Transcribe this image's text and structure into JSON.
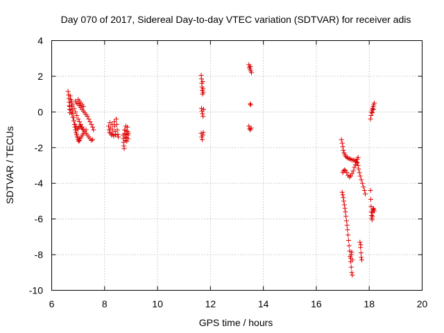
{
  "chart_data": {
    "type": "scatter",
    "title": "Day 070 of 2017, Sidereal Day-to-day VTEC variation (SDTVAR) for receiver adis",
    "xlabel": "GPS time / hours",
    "ylabel": "SDTVAR / TECUs",
    "xlim": [
      6,
      20
    ],
    "ylim": [
      -10,
      4
    ],
    "xticks": [
      "6",
      "8",
      "10",
      "12",
      "14",
      "16",
      "18",
      "20"
    ],
    "yticks": [
      "4",
      "2",
      "0",
      "-2",
      "-4",
      "-6",
      "-8",
      "-10"
    ],
    "grid": true,
    "marker": "plus",
    "color": "#e00000",
    "series": [
      {
        "name": "SDTVAR",
        "points": [
          [
            6.62,
            1.15
          ],
          [
            6.64,
            0.95
          ],
          [
            6.65,
            0.75
          ],
          [
            6.66,
            0.55
          ],
          [
            6.67,
            0.35
          ],
          [
            6.68,
            0.15
          ],
          [
            6.69,
            -0.05
          ],
          [
            6.7,
            0.9
          ],
          [
            6.72,
            0.7
          ],
          [
            6.74,
            0.5
          ],
          [
            6.76,
            0.3
          ],
          [
            6.78,
            0.1
          ],
          [
            6.8,
            -0.1
          ],
          [
            6.82,
            -0.3
          ],
          [
            6.84,
            -0.5
          ],
          [
            6.86,
            -0.7
          ],
          [
            6.88,
            -0.85
          ],
          [
            6.9,
            -1.0
          ],
          [
            6.92,
            -1.15
          ],
          [
            6.94,
            -1.25
          ],
          [
            6.96,
            -1.35
          ],
          [
            6.98,
            -1.45
          ],
          [
            7.0,
            -1.55
          ],
          [
            7.02,
            -1.65
          ],
          [
            7.05,
            -1.6
          ],
          [
            7.08,
            -1.5
          ],
          [
            7.12,
            -1.4
          ],
          [
            7.16,
            -1.3
          ],
          [
            7.2,
            -1.2
          ],
          [
            7.25,
            -1.1
          ],
          [
            7.3,
            -1.0
          ],
          [
            6.75,
            0.6
          ],
          [
            6.8,
            0.4
          ],
          [
            6.85,
            0.2
          ],
          [
            6.9,
            0.0
          ],
          [
            6.95,
            -0.2
          ],
          [
            7.0,
            -0.4
          ],
          [
            7.05,
            -0.55
          ],
          [
            7.1,
            -0.7
          ],
          [
            7.15,
            -0.85
          ],
          [
            7.2,
            -1.0
          ],
          [
            7.25,
            -1.1
          ],
          [
            7.3,
            -1.2
          ],
          [
            7.35,
            -1.3
          ],
          [
            7.4,
            -1.4
          ],
          [
            7.45,
            -1.5
          ],
          [
            7.5,
            -1.6
          ],
          [
            7.55,
            -1.55
          ],
          [
            6.9,
            0.6
          ],
          [
            6.95,
            0.5
          ],
          [
            7.0,
            0.45
          ],
          [
            7.05,
            0.35
          ],
          [
            7.1,
            0.25
          ],
          [
            7.15,
            0.15
          ],
          [
            7.2,
            0.05
          ],
          [
            7.25,
            -0.05
          ],
          [
            7.3,
            -0.15
          ],
          [
            7.35,
            -0.25
          ],
          [
            7.4,
            -0.4
          ],
          [
            7.45,
            -0.55
          ],
          [
            7.5,
            -0.7
          ],
          [
            7.55,
            -0.85
          ],
          [
            7.58,
            -1.0
          ],
          [
            7.0,
            0.7
          ],
          [
            7.05,
            0.6
          ],
          [
            7.1,
            0.5
          ],
          [
            7.15,
            0.4
          ],
          [
            7.2,
            0.3
          ],
          [
            6.68,
            0.3
          ],
          [
            6.72,
            0.1
          ],
          [
            6.76,
            -0.1
          ],
          [
            6.8,
            -0.3
          ],
          [
            6.84,
            -0.5
          ],
          [
            6.88,
            -0.7
          ],
          [
            6.92,
            -0.8
          ],
          [
            6.96,
            -0.95
          ],
          [
            7.0,
            -0.95
          ],
          [
            7.04,
            -0.85
          ],
          [
            7.08,
            -0.8
          ],
          [
            7.12,
            -0.85
          ],
          [
            7.16,
            -0.95
          ],
          [
            8.15,
            -0.8
          ],
          [
            8.17,
            -1.0
          ],
          [
            8.19,
            -1.15
          ],
          [
            8.2,
            -0.6
          ],
          [
            8.22,
            -0.9
          ],
          [
            8.24,
            -1.2
          ],
          [
            8.26,
            -1.3
          ],
          [
            8.28,
            -0.7
          ],
          [
            8.3,
            -1.0
          ],
          [
            8.32,
            -1.25
          ],
          [
            8.34,
            -1.35
          ],
          [
            8.36,
            -0.55
          ],
          [
            8.38,
            -0.8
          ],
          [
            8.4,
            -1.1
          ],
          [
            8.42,
            -1.3
          ],
          [
            8.44,
            -0.4
          ],
          [
            8.46,
            -0.7
          ],
          [
            8.48,
            -1.0
          ],
          [
            8.5,
            -1.25
          ],
          [
            8.52,
            -1.4
          ],
          [
            8.7,
            -1.3
          ],
          [
            8.71,
            -1.5
          ],
          [
            8.72,
            -1.7
          ],
          [
            8.73,
            -1.9
          ],
          [
            8.74,
            -2.05
          ],
          [
            8.75,
            -1.0
          ],
          [
            8.76,
            -1.2
          ],
          [
            8.77,
            -1.4
          ],
          [
            8.78,
            -1.6
          ],
          [
            8.8,
            -0.8
          ],
          [
            8.81,
            -1.05
          ],
          [
            8.82,
            -1.25
          ],
          [
            8.83,
            -1.45
          ],
          [
            8.84,
            -1.65
          ],
          [
            8.86,
            -0.85
          ],
          [
            8.87,
            -1.1
          ],
          [
            8.88,
            -1.3
          ],
          [
            8.89,
            -1.5
          ],
          [
            8.9,
            -1.2
          ],
          [
            11.65,
            2.05
          ],
          [
            11.66,
            1.85
          ],
          [
            11.67,
            1.6
          ],
          [
            11.68,
            1.4
          ],
          [
            11.69,
            1.2
          ],
          [
            11.7,
            1.0
          ],
          [
            11.71,
            1.7
          ],
          [
            11.72,
            1.3
          ],
          [
            11.73,
            1.1
          ],
          [
            11.66,
            0.2
          ],
          [
            11.68,
            0.05
          ],
          [
            11.7,
            -0.1
          ],
          [
            11.72,
            -0.25
          ],
          [
            11.74,
            0.15
          ],
          [
            11.65,
            -1.2
          ],
          [
            11.67,
            -1.4
          ],
          [
            11.69,
            -1.55
          ],
          [
            11.71,
            -1.3
          ],
          [
            11.73,
            -1.15
          ],
          [
            13.45,
            2.65
          ],
          [
            13.47,
            2.5
          ],
          [
            13.49,
            2.4
          ],
          [
            13.51,
            2.55
          ],
          [
            13.53,
            2.3
          ],
          [
            13.55,
            2.2
          ],
          [
            13.5,
            0.45
          ],
          [
            13.52,
            0.4
          ],
          [
            13.45,
            -0.8
          ],
          [
            13.48,
            -0.95
          ],
          [
            13.51,
            -1.0
          ],
          [
            13.54,
            -0.9
          ],
          [
            16.95,
            -1.55
          ],
          [
            16.98,
            -1.75
          ],
          [
            17.0,
            -1.95
          ],
          [
            17.02,
            -2.15
          ],
          [
            17.05,
            -2.3
          ],
          [
            17.08,
            -2.4
          ],
          [
            17.12,
            -2.5
          ],
          [
            17.16,
            -2.55
          ],
          [
            17.2,
            -2.6
          ],
          [
            17.25,
            -2.62
          ],
          [
            17.3,
            -2.65
          ],
          [
            17.35,
            -2.7
          ],
          [
            17.4,
            -2.7
          ],
          [
            17.45,
            -2.72
          ],
          [
            17.5,
            -2.75
          ],
          [
            17.55,
            -2.85
          ],
          [
            17.58,
            -3.0
          ],
          [
            17.6,
            -3.2
          ],
          [
            17.63,
            -3.4
          ],
          [
            17.66,
            -3.6
          ],
          [
            17.7,
            -3.8
          ],
          [
            17.74,
            -4.0
          ],
          [
            17.78,
            -4.2
          ],
          [
            17.82,
            -4.4
          ],
          [
            17.85,
            -4.6
          ],
          [
            17.0,
            -3.4
          ],
          [
            17.03,
            -3.3
          ],
          [
            17.07,
            -3.25
          ],
          [
            17.1,
            -3.3
          ],
          [
            17.15,
            -3.4
          ],
          [
            17.2,
            -3.55
          ],
          [
            17.25,
            -3.65
          ],
          [
            17.3,
            -3.6
          ],
          [
            17.35,
            -3.45
          ],
          [
            17.4,
            -3.3
          ],
          [
            17.44,
            -3.1
          ],
          [
            17.48,
            -2.95
          ],
          [
            17.52,
            -2.8
          ],
          [
            17.55,
            -2.65
          ],
          [
            17.58,
            -2.55
          ],
          [
            16.98,
            -4.5
          ],
          [
            17.0,
            -4.65
          ],
          [
            17.02,
            -4.8
          ],
          [
            17.04,
            -5.0
          ],
          [
            17.06,
            -5.2
          ],
          [
            17.08,
            -5.4
          ],
          [
            17.1,
            -5.6
          ],
          [
            17.12,
            -5.85
          ],
          [
            17.14,
            -6.1
          ],
          [
            17.16,
            -6.35
          ],
          [
            17.18,
            -6.6
          ],
          [
            17.2,
            -6.9
          ],
          [
            17.22,
            -7.2
          ],
          [
            17.24,
            -7.5
          ],
          [
            17.26,
            -7.8
          ],
          [
            17.28,
            -8.1
          ],
          [
            17.3,
            -8.4
          ],
          [
            17.32,
            -8.7
          ],
          [
            17.34,
            -9.0
          ],
          [
            17.36,
            -9.15
          ],
          [
            17.3,
            -8.2
          ],
          [
            17.32,
            -8.0
          ],
          [
            17.34,
            -7.85
          ],
          [
            17.36,
            -8.3
          ],
          [
            17.65,
            -7.3
          ],
          [
            17.67,
            -7.6
          ],
          [
            17.69,
            -7.9
          ],
          [
            17.7,
            -8.15
          ],
          [
            17.72,
            -8.3
          ],
          [
            17.68,
            -7.45
          ],
          [
            18.05,
            -4.4
          ],
          [
            18.06,
            -4.9
          ],
          [
            18.07,
            -5.3
          ],
          [
            18.08,
            -5.6
          ],
          [
            18.09,
            -5.8
          ],
          [
            18.1,
            -5.95
          ],
          [
            18.11,
            -6.05
          ],
          [
            18.12,
            -5.85
          ],
          [
            18.13,
            -5.65
          ],
          [
            18.14,
            -5.5
          ],
          [
            18.15,
            -5.4
          ],
          [
            18.17,
            -5.45
          ],
          [
            18.19,
            -5.55
          ],
          [
            18.05,
            -0.4
          ],
          [
            18.07,
            -0.2
          ],
          [
            18.09,
            0.0
          ],
          [
            18.11,
            0.1
          ],
          [
            18.13,
            0.2
          ],
          [
            18.15,
            0.3
          ],
          [
            18.17,
            0.4
          ],
          [
            18.19,
            0.5
          ],
          [
            18.12,
            -0.05
          ],
          [
            18.16,
            0.15
          ]
        ]
      }
    ]
  }
}
